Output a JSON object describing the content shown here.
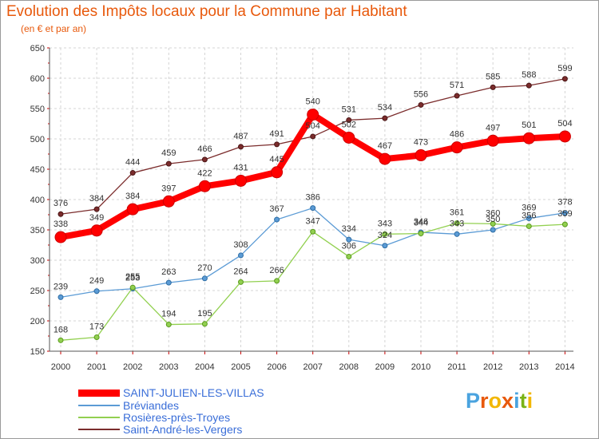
{
  "header": {
    "title": "Evolution des Impôts locaux pour la Commune par Habitant",
    "subtitle": "(en € et par an)"
  },
  "logo": {
    "letters": [
      "P",
      "r",
      "o",
      "x",
      "i",
      "t",
      "i"
    ],
    "colors": [
      "#4aa3df",
      "#e8590c",
      "#f2b705",
      "#e8590c",
      "#4aa3df",
      "#7ab317",
      "#f2b705"
    ]
  },
  "chart_data": {
    "type": "line",
    "title": "Evolution des Impôts locaux pour la Commune par Habitant",
    "subtitle": "(en € et par an)",
    "x": [
      "2000",
      "2001",
      "2002",
      "2003",
      "2004",
      "2005",
      "2006",
      "2007",
      "2008",
      "2009",
      "2010",
      "2011",
      "2012",
      "2013",
      "2014"
    ],
    "ylim": [
      150,
      650
    ],
    "yticks": [
      150,
      200,
      250,
      300,
      350,
      400,
      450,
      500,
      550,
      600,
      650
    ],
    "grid": true,
    "legend_position": "bottom-left",
    "series": [
      {
        "name": "SAINT-JULIEN-LES-VILLAS",
        "color": "#ff0000",
        "values": [
          338,
          349,
          384,
          397,
          422,
          431,
          445,
          540,
          502,
          467,
          473,
          486,
          497,
          501,
          504
        ]
      },
      {
        "name": "Bréviandes",
        "color": "#5b9bd5",
        "values": [
          239,
          249,
          253,
          263,
          270,
          308,
          367,
          386,
          334,
          324,
          346,
          343,
          350,
          369,
          378
        ]
      },
      {
        "name": "Rosières-près-Troyes",
        "color": "#92d050",
        "values": [
          168,
          173,
          255,
          194,
          195,
          264,
          266,
          347,
          306,
          343,
          344,
          361,
          360,
          356,
          359
        ]
      },
      {
        "name": "Saint-André-les-Vergers",
        "color": "#7b2c2c",
        "values": [
          376,
          384,
          444,
          459,
          466,
          487,
          491,
          504,
          531,
          534,
          556,
          571,
          585,
          588,
          599
        ]
      }
    ]
  }
}
